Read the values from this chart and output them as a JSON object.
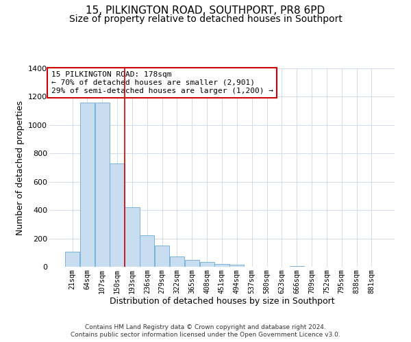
{
  "title": "15, PILKINGTON ROAD, SOUTHPORT, PR8 6PD",
  "subtitle": "Size of property relative to detached houses in Southport",
  "xlabel": "Distribution of detached houses by size in Southport",
  "ylabel": "Number of detached properties",
  "bar_labels": [
    "21sqm",
    "64sqm",
    "107sqm",
    "150sqm",
    "193sqm",
    "236sqm",
    "279sqm",
    "322sqm",
    "365sqm",
    "408sqm",
    "451sqm",
    "494sqm",
    "537sqm",
    "580sqm",
    "623sqm",
    "666sqm",
    "709sqm",
    "752sqm",
    "795sqm",
    "838sqm",
    "881sqm"
  ],
  "bar_values": [
    108,
    1160,
    1160,
    730,
    420,
    220,
    148,
    72,
    50,
    33,
    18,
    15,
    0,
    0,
    0,
    5,
    0,
    0,
    0,
    0,
    0
  ],
  "bar_color": "#c8ddef",
  "bar_edgecolor": "#6aaad4",
  "ylim": [
    0,
    1400
  ],
  "yticks": [
    0,
    200,
    400,
    600,
    800,
    1000,
    1200,
    1400
  ],
  "vline_color": "#cc0000",
  "annotation_title": "15 PILKINGTON ROAD: 178sqm",
  "annotation_line1": "← 70% of detached houses are smaller (2,901)",
  "annotation_line2": "29% of semi-detached houses are larger (1,200) →",
  "annotation_box_color": "#cc0000",
  "footer1": "Contains HM Land Registry data © Crown copyright and database right 2024.",
  "footer2": "Contains public sector information licensed under the Open Government Licence v3.0.",
  "bg_color": "#ffffff",
  "grid_color": "#ccd8e8",
  "title_fontsize": 11,
  "subtitle_fontsize": 10,
  "vline_index": 3.5
}
